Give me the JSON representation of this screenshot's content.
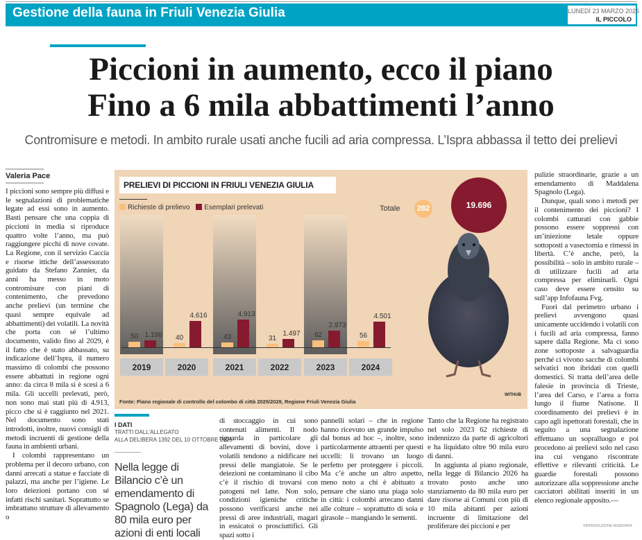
{
  "header": {
    "section": "Gestione della fauna in Friuli Venezia Giulia",
    "date": "LUNEDÌ 23 MARZO 2026",
    "paper": "IL PICCOLO"
  },
  "headline": {
    "line1": "Piccioni in aumento, ecco il piano",
    "line2": "Fino a 6 mila abbattimenti l’anno"
  },
  "subtitle": "Contromisure e metodi. In ambito rurale usati anche fucili ad aria compressa. L’Ispra abbassa il tetto dei prelievi",
  "author": "Valeria Pace",
  "colors": {
    "accent": "#00a3c4",
    "infographic_bg": "#f0d5b6",
    "richieste": "#fbbf7c",
    "prelevati": "#861a2f"
  },
  "chart_data": {
    "type": "bar",
    "title": "PRELIEVI DI PICCIONI IN FRIULI VENEZIA GIULIA",
    "categories": [
      "2019",
      "2020",
      "2021",
      "2022",
      "2023",
      "2024"
    ],
    "series": [
      {
        "name": "Richieste di prelievo",
        "values": [
          50,
          40,
          43,
          31,
          62,
          56
        ],
        "labels": [
          "50",
          "40",
          "43",
          "31",
          "62",
          "56"
        ]
      },
      {
        "name": "Esemplari prelevati",
        "values": [
          1196,
          4616,
          4913,
          1497,
          2973,
          4501
        ],
        "labels": [
          "1.196",
          "4.616",
          "4.913",
          "1.497",
          "2.973",
          "4.501"
        ]
      }
    ],
    "totals": {
      "label": "Totale",
      "richieste": "282",
      "prelevati": "19.696"
    },
    "source": "Fonte: Piano regionale di controllo del colombo di città 2025/2029, Regione Friuli Venezia Giulia",
    "credit": "WITHUB",
    "legend": "top-left"
  },
  "box": {
    "kicker": "I DATI",
    "line1": "TRATTI DALL’ALLEGATO",
    "line2": "ALLA DELIBERA 1392 DEL 10 OTTOBRE 2025",
    "quote": "Nella legge di Bilancio c’è un emendamento di Spagnolo (Lega) da 80 mila euro per azioni di enti locali"
  },
  "body": {
    "col1": [
      "I piccioni sono sempre più diffusi e le segnalazioni di problematiche legate ad essi sono in aumento. Basti pensare che una coppia di piccioni in media si riproduce quattro volte l’anno, ma può raggiungere picchi di nove covate. La Regione, con il servizio Caccia e risorse ittiche dell’assessorato guidato da Stefano Zannier, da anni ha messo in moto contromisure con piani di contenimento, che prevedono anche prelievi (un termine che quasi sempre equivale ad abbattimenti) dei volatili. La novità che porta con sé l’ultimo documento, valido fino al 2029, è il fatto che è stato abbassato, su indicazione dell’Ispra, il numero massimo di colombi che possono essere abbattuti in regione ogni anno: da circa 8 mila si è scesi a 6 mila. Gli uccelli prelevati, però, non sono mai stati più di 4.913, picco che si è raggiunto nel 2021. Nel documento sono stati introdotti, inoltre, nuovi consigli di metodi incruenti di gestione della fauna in ambienti urbani.",
      "I colombi rappresentano un problema per il decoro urbano, con danni arrecati a statue e facciate di palazzi, ma anche per l’igiene. Le loro deiezioni portano con sé infatti rischi sanitari. Soprattutto se imbrattano strutture di allevamento o"
    ],
    "col2": "di stoccaggio in cui sono contenuti alimenti. Il nodo riguarda in particolare gli allevamenti di bovini, dove i volatili tendono a nidificare nei pressi delle mangiatoie. Se le deiezioni ne contaminano il cibo c’è il rischio di trovarsi con patogeni nel latte. Non solo, condizioni igieniche critiche possono verificarsi anche nei pressi di aree industriali, magari in essicatoi o prosciuttifici. Gli spazi sotto i",
    "col3": "pannelli solari – che in regione hanno ricevuto un grande impulso dal bonus ad hoc –, inoltre, sono particolarmente attraenti per questi uccelli: lì trovano un luogo perfetto per proteggere i piccoli. Ma c’è anche un altro aspetto, meno noto a chi è abituato a pensare che siano una piaga solo in città: i colombi arrecano danni alle colture – soprattutto di soia e girasole – mangiando le sementi.",
    "col4": [
      "Tanto che la Regione ha registrato nel solo 2023 62 richieste di indennizzo da parte di agricoltori e ha liquidato oltre 90 mila euro di danni.",
      "In aggiunta al piano regionale, nella legge di Bilancio 2026 ha trovato posto anche uno stanziamento da 80 mila euro per dare risorse ai Comuni con più di 10 mila abitanti per azioni incruente di limitazione del proliferare dei piccioni e per"
    ],
    "col5": [
      "pulizie straordinarie, grazie a un emendamento di Maddalena Spagnolo (Lega).",
      "Dunque, quali sono i metodi per il contenimento dei piccioni? I colombi catturati con gabbie possono essere soppressi con un’iniezione letale oppure sottoposti a vasectomia e rimessi in libertà. C’è anche, però, la possibilità – solo in ambito rurale – di utilizzare fucili ad aria compressa per eliminarli. Ogni caso deve essere censito su sull’app Infofauna Fvg.",
      "Fuori dal perimetro urbano i prelievi avvengono quasi unicamente uccidendo i volatili con i fucili ad aria compressa, fanno sapere dalla Regione. Ma ci sono zone sottoposte a salvaguardia perché ci vivono sacche di colombi selvatici non ibridati con quelli domestici. Si tratta dell’area delle falesie in provincia di Trieste, l’area del Carso, e l’area a forra lungo il fiume Natisone. Il coordinamento dei prelievi è in capo agli ispettorati forestali, che in seguito a una segnalazione effettuano un sopralluogo e poi procedono ai prelievi solo nel caso ina cui vengano riscontrate effettive e rilevanti criticità. Le guardie forestali possono autorizzare alla soppressione anche cacciatori abilitati inseriti in un elenco regionale apposito.—"
    ]
  },
  "copyright": "©RIPRODUZIONE RISERVATA"
}
